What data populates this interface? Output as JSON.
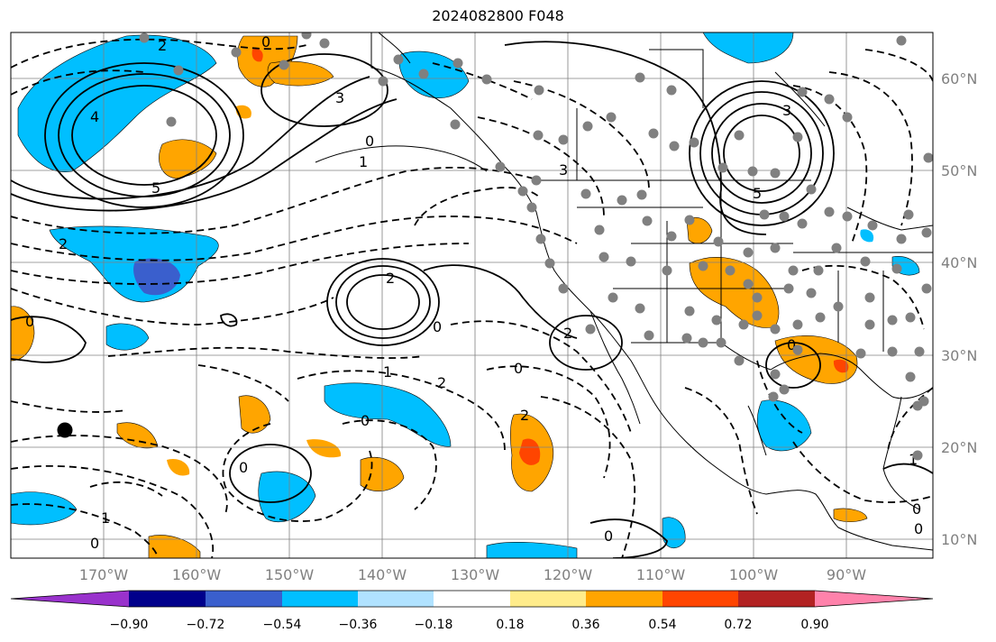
{
  "title": "2024082800 F048",
  "map": {
    "lon_ticks": [
      "170°W",
      "160°W",
      "150°W",
      "140°W",
      "130°W",
      "120°W",
      "110°W",
      "100°W",
      "90°W"
    ],
    "lat_ticks": [
      "60°N",
      "50°N",
      "40°N",
      "30°N",
      "20°N",
      "10°N"
    ],
    "marker_color": "#808080",
    "contour_labels": [
      "0",
      "2",
      "3",
      "0",
      "1",
      "5",
      "4",
      "3",
      "5",
      "3",
      "2",
      "2",
      "0",
      "0",
      "1",
      "0",
      "2",
      "0",
      "2",
      "0",
      "1",
      "0",
      "2",
      "0",
      "1",
      "0",
      "0",
      "0"
    ]
  },
  "colorbar": {
    "ticks": [
      "−0.90",
      "−0.72",
      "−0.54",
      "−0.36",
      "−0.18",
      "0.18",
      "0.36",
      "0.54",
      "0.72",
      "0.90"
    ],
    "colors": [
      "#9932cc",
      "#00008b",
      "#3a5fcd",
      "#00bfff",
      "#b0e2ff",
      "#ffffff",
      "#ffec8b",
      "#ffa500",
      "#ff4500",
      "#b22222",
      "#ff82ab"
    ]
  }
}
